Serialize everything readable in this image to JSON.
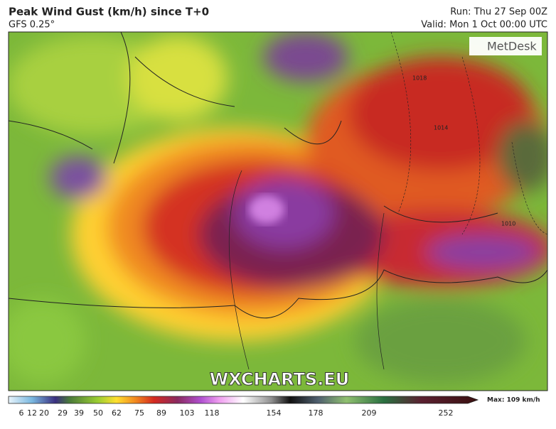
{
  "header": {
    "title": "Peak Wind Gust (km/h) since T+0",
    "subtitle": "GFS 0.25°",
    "run": "Run: Thu 27 Sep 00Z",
    "valid": "Valid: Mon 1 Oct 00:00 UTC"
  },
  "logo": "MetDesk",
  "watermark": "WXCHARTS.EU",
  "colorbar": {
    "ticks": [
      6,
      12,
      20,
      29,
      39,
      50,
      62,
      75,
      89,
      103,
      118,
      154,
      178,
      209,
      252
    ],
    "max_label": "Max: 109 km/h"
  },
  "isobars": [
    "1018",
    "1014",
    "1010"
  ]
}
